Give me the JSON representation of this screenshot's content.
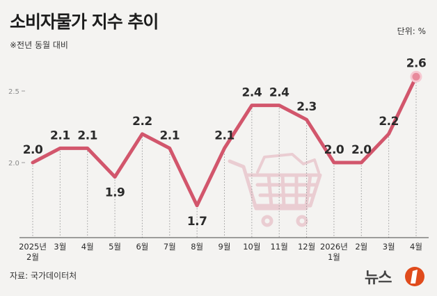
{
  "header": {
    "title": "소비자물가 지수 추이",
    "subtitle": "※전년 동월 대비",
    "unit": "단위: %"
  },
  "footer": {
    "source": "자료: 국가데이터처",
    "brand": "뉴스1"
  },
  "chart_data": {
    "type": "line",
    "title": "소비자물가 지수 추이",
    "subtitle": "※전년 동월 대비",
    "unit": "%",
    "categories": [
      [
        "2025년",
        "2월"
      ],
      [
        "3월"
      ],
      [
        "4월"
      ],
      [
        "5월"
      ],
      [
        "6월"
      ],
      [
        "7월"
      ],
      [
        "8월"
      ],
      [
        "9월"
      ],
      [
        "10월"
      ],
      [
        "11월"
      ],
      [
        "12월"
      ],
      [
        "2026년",
        "1월"
      ],
      [
        "2월"
      ],
      [
        "3월"
      ],
      [
        "4월"
      ]
    ],
    "series": [
      {
        "values": [
          2.0,
          2.1,
          2.1,
          1.9,
          2.2,
          2.1,
          1.7,
          2.1,
          2.4,
          2.4,
          2.3,
          2.0,
          2.0,
          2.2,
          2.6
        ]
      }
    ],
    "data_labels": [
      "2.0",
      "2.1",
      "2.1",
      "1.9",
      "2.2",
      "2.1",
      "1.7",
      "2.1",
      "2.4",
      "2.4",
      "2.3",
      "2.0",
      "2.0",
      "2.2",
      "2.6"
    ],
    "y_ticks": [
      {
        "value": 2.0,
        "label": "2.0"
      },
      {
        "value": 2.5,
        "label": "2.5"
      }
    ],
    "line_color": "#d2566c",
    "highlight_color": "#e88a9c",
    "guide_color": "#9a9a9a"
  }
}
